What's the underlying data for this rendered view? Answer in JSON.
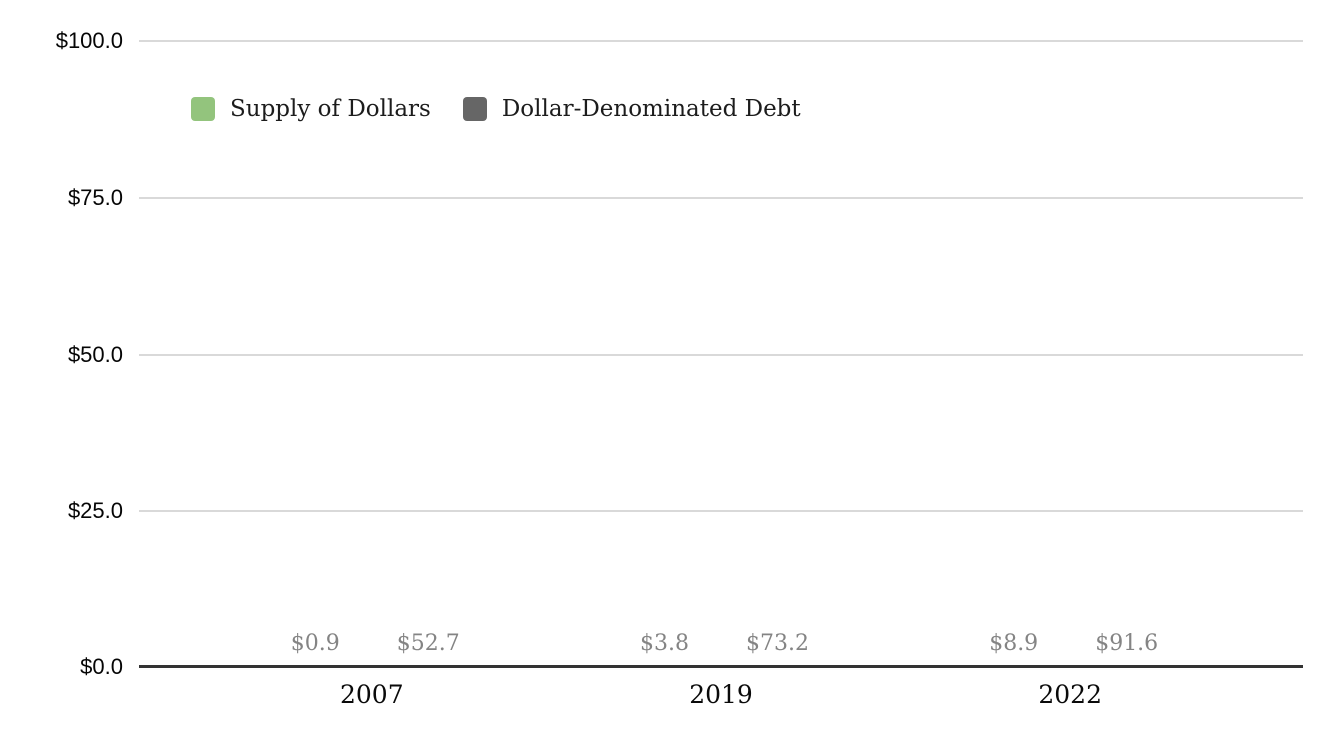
{
  "colors": {
    "background": "#ffffff",
    "supply_green": "#93c47d",
    "debt_gray": "#666666",
    "gridline": "#d9d9d9",
    "axis_line": "#333333",
    "value_label": "#848484",
    "tick_label": "#050505",
    "category_label": "#0a0a0a"
  },
  "chart_data": {
    "type": "bar",
    "title": "",
    "xlabel": "",
    "ylabel": "",
    "categories": [
      "2007",
      "2019",
      "2022"
    ],
    "series": [
      {
        "name": "Supply of Dollars",
        "color": "#93c47d",
        "values": [
          0.9,
          3.8,
          8.9
        ],
        "labels": [
          "$0.9",
          "$3.8",
          "$8.9"
        ]
      },
      {
        "name": "Dollar-Denominated Debt",
        "color": "#666666",
        "values": [
          52.7,
          73.2,
          91.6
        ],
        "labels": [
          "$52.7",
          "$73.2",
          "$91.6"
        ]
      }
    ],
    "ylim": [
      0,
      100
    ],
    "y_ticks": [
      {
        "value": 0,
        "label": "$0.0"
      },
      {
        "value": 25,
        "label": "$25.0"
      },
      {
        "value": 50,
        "label": "$50.0"
      },
      {
        "value": 75,
        "label": "$75.0"
      },
      {
        "value": 100,
        "label": "$100.0"
      }
    ],
    "grid": true,
    "legend_position": "top-left-inside",
    "group_centers_pct": [
      20,
      50,
      80
    ]
  }
}
